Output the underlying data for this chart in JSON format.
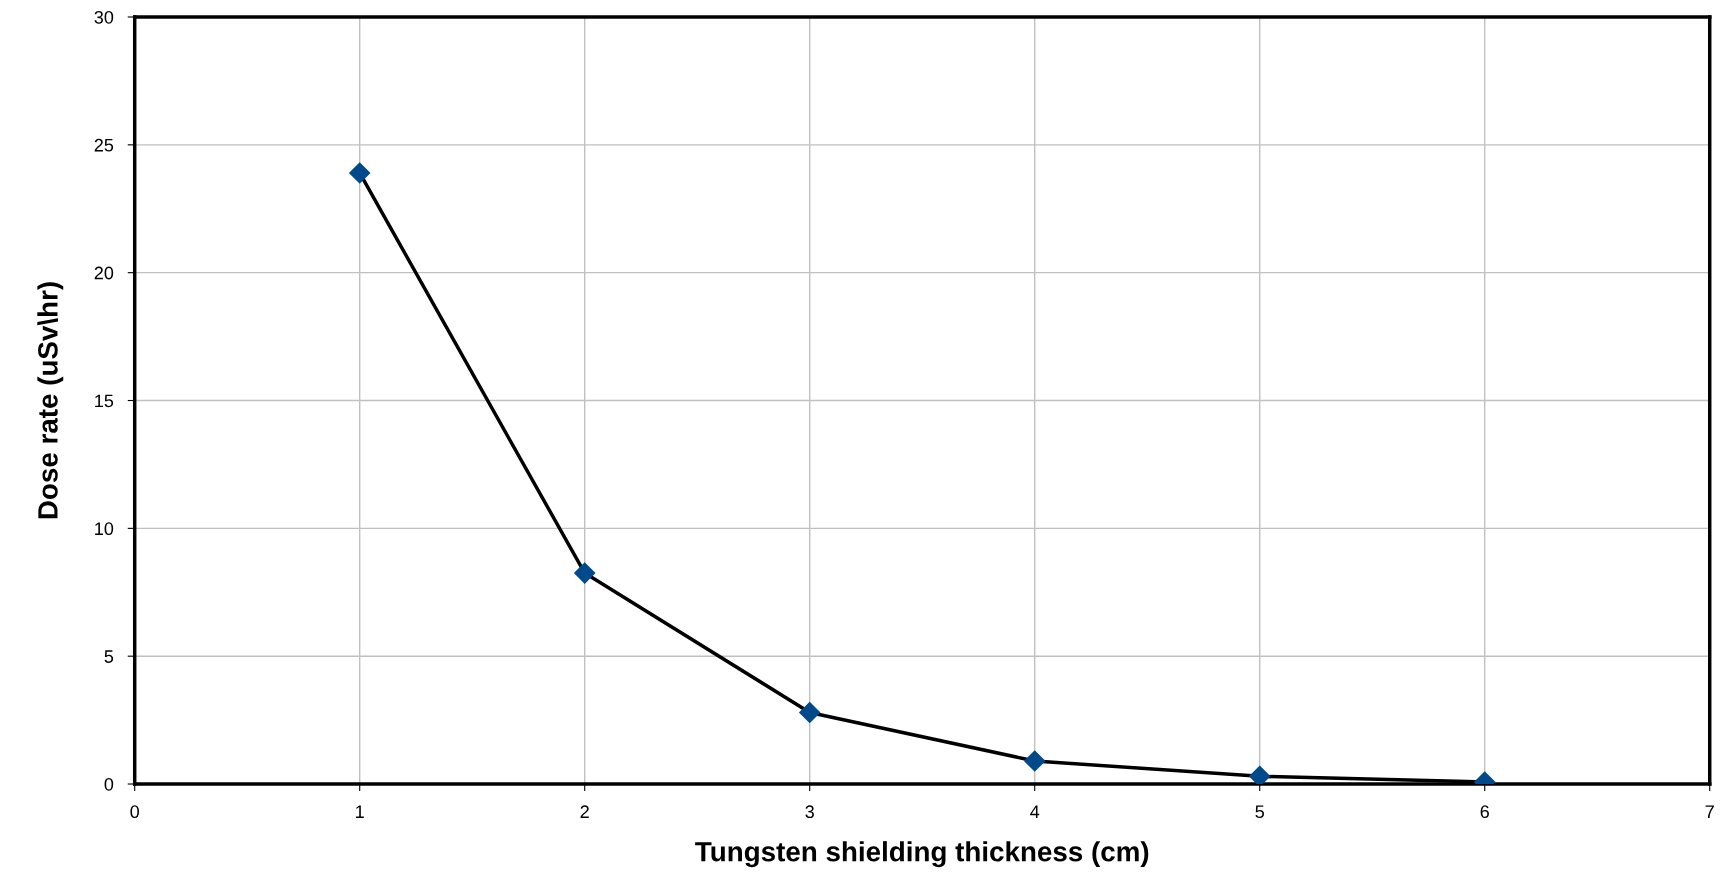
{
  "chart_data": {
    "type": "line",
    "xlabel": "Tungsten shielding thickness (cm)",
    "ylabel": "Dose rate (uSv\\hr)",
    "x": [
      1,
      2,
      3,
      4,
      5,
      6
    ],
    "series": [
      {
        "color": "#004a8c",
        "values": [
          23.9,
          8.25,
          2.8,
          0.9,
          0.3,
          0.08
        ]
      }
    ],
    "xlim": [
      0,
      7
    ],
    "xticks": [
      0,
      1,
      2,
      3,
      4,
      5,
      6,
      7
    ],
    "ylim": [
      0,
      30
    ],
    "yticks": [
      0,
      5,
      10,
      15,
      20,
      25,
      30
    ],
    "grid": true,
    "marker": "diamond",
    "line_style": "solid",
    "legend": false
  }
}
